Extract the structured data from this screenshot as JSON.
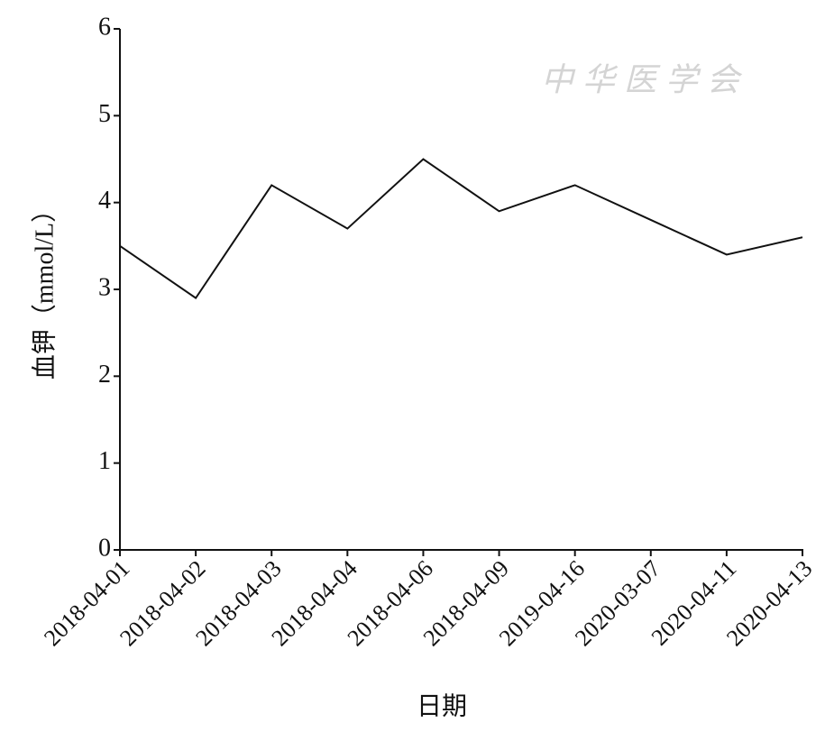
{
  "chart_data": {
    "type": "line",
    "watermark": "中华医学会",
    "y_label": "血钾（mmol/L）",
    "x_label": "日期",
    "categories": [
      "2018-04-01",
      "2018-04-02",
      "2018-04-03",
      "2018-04-04",
      "2018-04-06",
      "2018-04-09",
      "2019-04-16",
      "2020-03-07",
      "2020-04-11",
      "2020-04-13"
    ],
    "values": [
      3.5,
      2.9,
      4.2,
      3.7,
      4.5,
      3.9,
      4.2,
      3.8,
      3.4,
      3.6
    ],
    "color": "#111111",
    "ylim": [
      0,
      6
    ],
    "yticks": [
      0,
      1,
      2,
      3,
      4,
      5,
      6
    ],
    "grid": false
  }
}
